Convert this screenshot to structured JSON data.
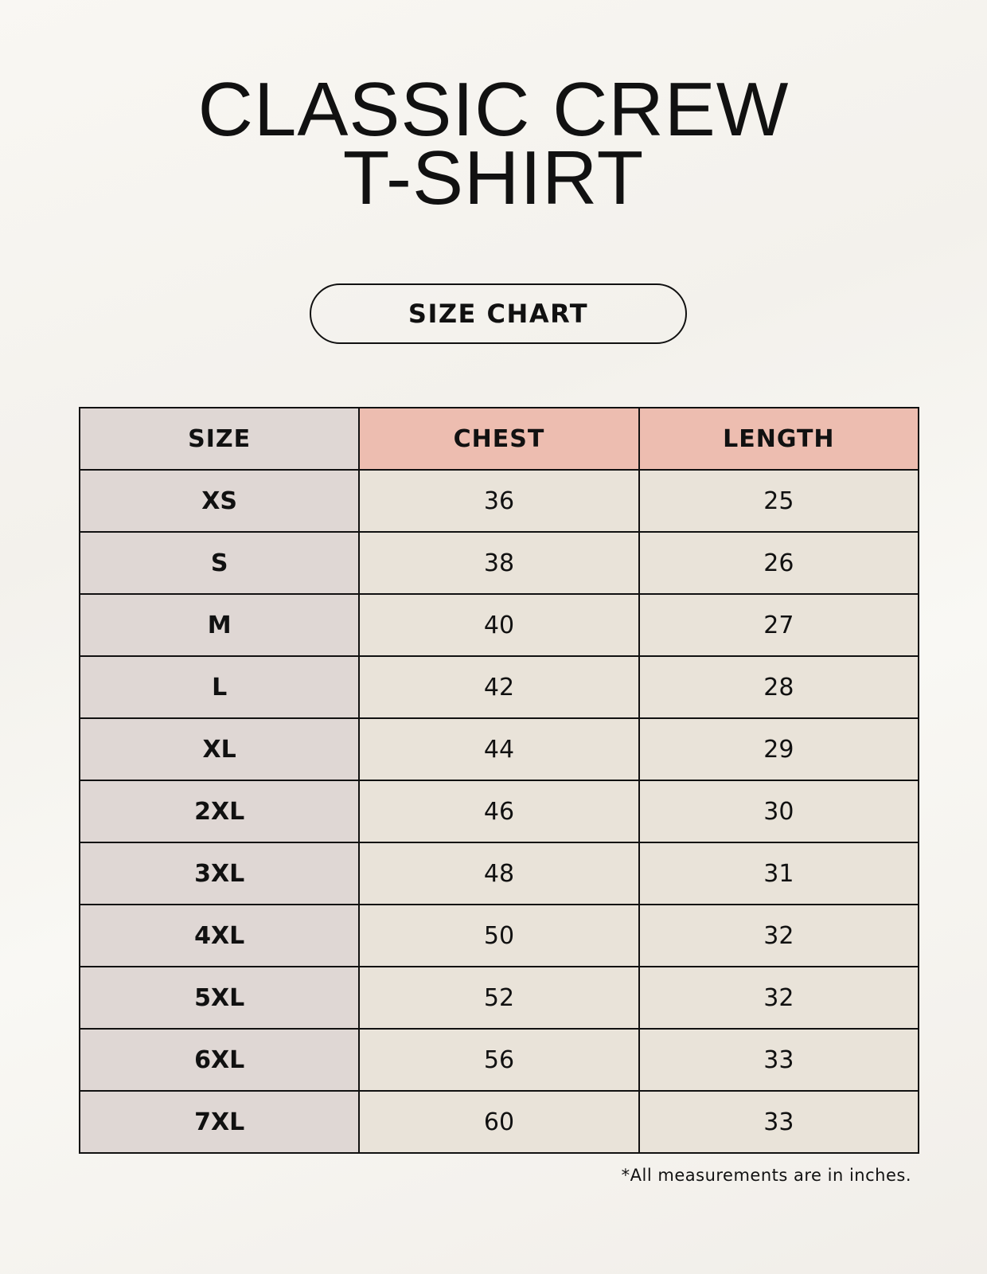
{
  "title": {
    "line1": "CLASSIC CREW",
    "line2": "T-SHIRT"
  },
  "badge": "SIZE CHART",
  "colors": {
    "size_column": "#dfd7d4",
    "header_accent": "#edbdb0",
    "cell": "#e9e3d9",
    "background": "#f8f6f2"
  },
  "table": {
    "headers": [
      "SIZE",
      "CHEST",
      "LENGTH"
    ],
    "rows": [
      [
        "XS",
        "36",
        "25"
      ],
      [
        "S",
        "38",
        "26"
      ],
      [
        "M",
        "40",
        "27"
      ],
      [
        "L",
        "42",
        "28"
      ],
      [
        "XL",
        "44",
        "29"
      ],
      [
        "2XL",
        "46",
        "30"
      ],
      [
        "3XL",
        "48",
        "31"
      ],
      [
        "4XL",
        "50",
        "32"
      ],
      [
        "5XL",
        "52",
        "32"
      ],
      [
        "6XL",
        "56",
        "33"
      ],
      [
        "7XL",
        "60",
        "33"
      ]
    ]
  },
  "note": "*All measurements are in inches."
}
